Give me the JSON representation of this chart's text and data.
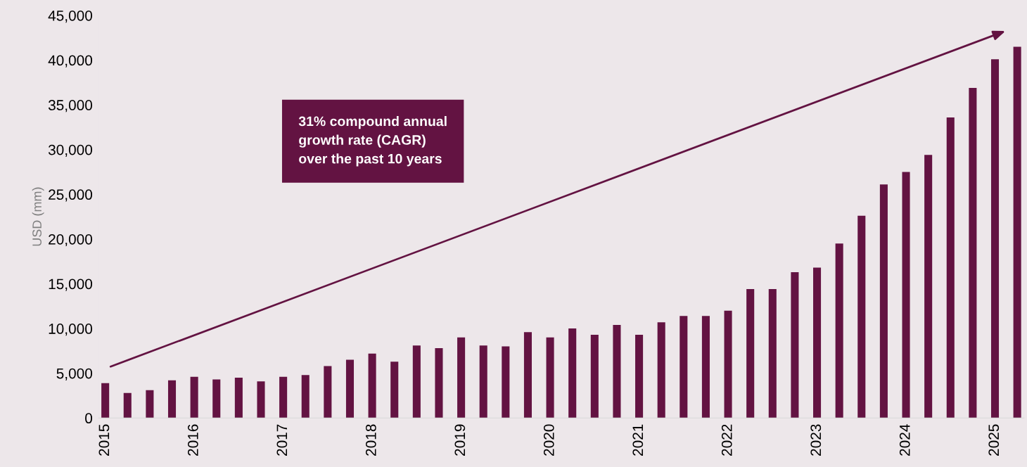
{
  "chart_data": {
    "type": "bar",
    "ylabel": "USD (mm)",
    "categories": [
      "2015",
      null,
      null,
      null,
      "2016",
      null,
      null,
      null,
      "2017",
      null,
      null,
      null,
      "2018",
      null,
      null,
      null,
      "2019",
      null,
      null,
      null,
      "2020",
      null,
      null,
      null,
      "2021",
      null,
      null,
      null,
      "2022",
      null,
      null,
      null,
      "2023",
      null,
      null,
      null,
      "2024",
      null,
      null,
      null,
      "2025",
      null
    ],
    "values": [
      3900,
      2800,
      3100,
      4200,
      4600,
      4300,
      4500,
      4100,
      4600,
      4800,
      5800,
      6500,
      7200,
      6300,
      8100,
      7800,
      9000,
      8100,
      8000,
      9600,
      9000,
      10000,
      9300,
      10400,
      9300,
      10700,
      11400,
      11400,
      12000,
      14400,
      14400,
      16300,
      16800,
      19500,
      22600,
      26100,
      27500,
      29400,
      33600,
      36900,
      40100,
      41500
    ],
    "color": "#631342",
    "ylim": [
      0,
      45000
    ],
    "yticks": [
      0,
      {
        "value": 5000,
        "label": "5,000"
      },
      {
        "value": 10000,
        "label": "10,000"
      },
      {
        "value": 15000,
        "label": "15,000"
      },
      {
        "value": 20000,
        "label": "20,000"
      },
      {
        "value": 25000,
        "label": "25,000"
      },
      {
        "value": 30000,
        "label": "30,000"
      },
      {
        "value": 35000,
        "label": "35,000"
      },
      {
        "value": 40000,
        "label": "40,000"
      },
      {
        "value": 45000,
        "label": "45,000"
      }
    ],
    "grid": false,
    "annotations": [
      "31% compound annual\ngrowth rate (CAGR)\nover the past 10 years"
    ]
  }
}
